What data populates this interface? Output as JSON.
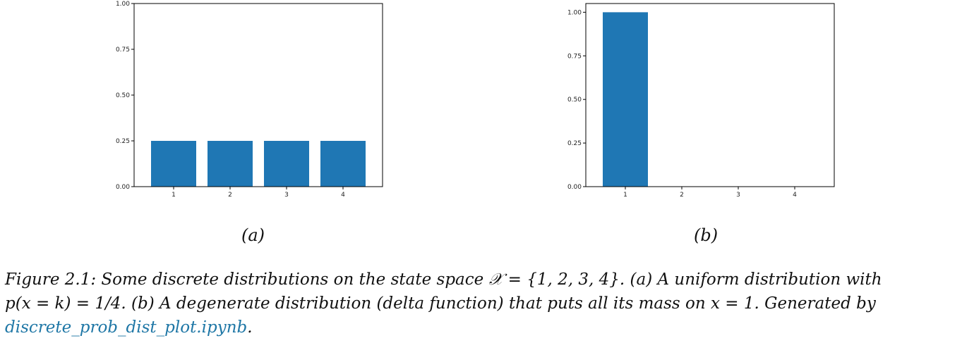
{
  "chart_data": [
    {
      "type": "bar",
      "categories": [
        "1",
        "2",
        "3",
        "4"
      ],
      "values": [
        0.25,
        0.25,
        0.25,
        0.25
      ],
      "ylim": [
        0,
        1.0
      ],
      "yticks": [
        "0.00",
        "0.25",
        "0.50",
        "0.75",
        "1.00"
      ],
      "color": "#1f77b4",
      "label": "(a)"
    },
    {
      "type": "bar",
      "categories": [
        "1",
        "2",
        "3",
        "4"
      ],
      "values": [
        1.0,
        0,
        0,
        0
      ],
      "ylim": [
        0,
        1.05
      ],
      "yticks": [
        "0.00",
        "0.25",
        "0.50",
        "0.75",
        "1.00"
      ],
      "color": "#1f77b4",
      "label": "(b)"
    }
  ],
  "caption": {
    "line1": "Figure 2.1: Some discrete distributions on the state space 𝒳 = {1, 2, 3, 4}. (a) A uniform distribution with",
    "line2": "p(x = k) = 1/4. (b) A degenerate distribution (delta function) that puts all its mass on x = 1. Generated by",
    "link": "discrete_prob_dist_plot.ipynb",
    "end": "."
  }
}
